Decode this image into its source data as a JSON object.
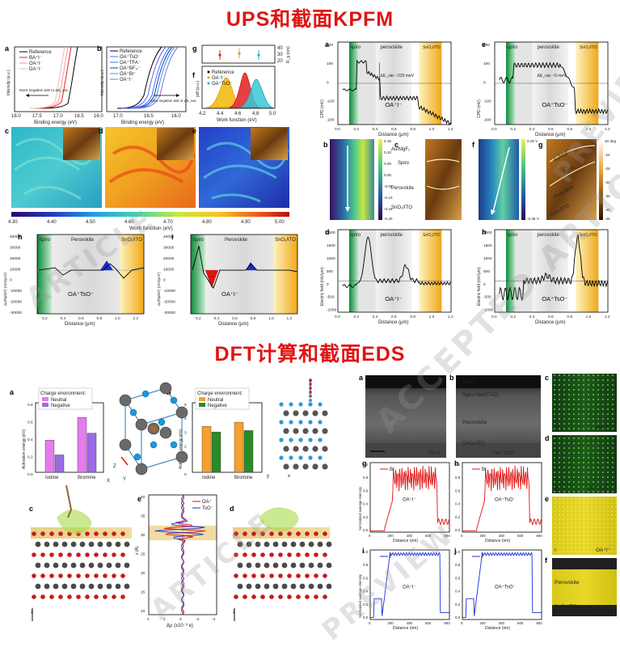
{
  "titles": {
    "top": "UPS和截面KPFM",
    "bottom": "DFT计算和截面EDS"
  },
  "watermarks": [
    "ARTICLE",
    "PREVIEW",
    "ACCEPTED ARTICLE",
    "ARTICLE",
    "PREVIEW"
  ],
  "colors": {
    "title_red": "#e01414",
    "spiro_green": "#1a9a4a",
    "sno2_orange": "#f2b01e",
    "oai": "#e01212",
    "oatso": "#1a2fd8"
  },
  "ups": {
    "panel_a": {
      "label": "a",
      "ylabel": "Intensity (a.u.)",
      "xlabel": "Binding energy (eV)",
      "xticks": [
        "18.0",
        "17.5",
        "17.0",
        "16.5",
        "16.0"
      ],
      "legend": [
        "Reference",
        "BA⁺I⁻",
        "OA⁺I⁻",
        "DA⁺I⁻"
      ],
      "note_left": "More negative ΔW or ΔE_vac"
    },
    "panel_b": {
      "label": "b",
      "ylabel": "Intensity (a.u.)",
      "xlabel": "Binding energy (eV)",
      "xticks": [
        "17.0",
        "16.5",
        "16.0"
      ],
      "legend": [
        "Reference",
        "OA⁺TsO⁻",
        "OA⁺TFA⁻",
        "OA⁺BF₄⁻",
        "OA⁺Br⁻",
        "OA⁺I⁻"
      ],
      "note_right": "Less negative ΔW or ΔE_vac"
    },
    "panel_g": {
      "label": "g",
      "ylabel": "R_q (nm)",
      "yticks": [
        "40",
        "30",
        "20"
      ]
    },
    "panel_f": {
      "label": "f",
      "ylabel": "pdf (a.u.)",
      "xlabel": "Work function (eV)",
      "xticks": [
        "4.2",
        "4.4",
        "4.6",
        "4.8",
        "5.0"
      ],
      "legend": [
        "Reference",
        "OA⁺I⁻",
        "OA⁺TsO⁻"
      ]
    },
    "maps": {
      "labels": [
        "c",
        "d",
        "e"
      ],
      "colorbar_ticks": [
        "4.30",
        "4.40",
        "4.50",
        "4.60",
        "4.70",
        "4.80",
        "4.90",
        "5.00"
      ],
      "colorbar_label": "Work function (eV)"
    },
    "panel_h": {
      "label": "h",
      "ylabel": "Δ(∂²ψ/∂x²) (mV/μm²)",
      "xlabel": "Distance (μm)",
      "yticks": [
        "40000",
        "30000",
        "20000",
        "10000",
        "0",
        "-10000",
        "-20000",
        "-30000"
      ],
      "xticks": [
        "0.2",
        "0.4",
        "0.6",
        "0.8",
        "1.0",
        "1.2"
      ],
      "regions": [
        "Spiro",
        "Perovskite",
        "SnO₂/ITO"
      ],
      "sample": "OA⁺TsO⁻"
    },
    "panel_i": {
      "label": "i",
      "ylabel": "Δ(∂²ψ/∂x²) (mV/μm²)",
      "xlabel": "Distance (μm)",
      "yticks": [
        "40000",
        "30000",
        "20000",
        "10000",
        "0",
        "-10000",
        "-20000",
        "-30000"
      ],
      "xticks": [
        "0.2",
        "0.4",
        "0.6",
        "0.8",
        "1.0",
        "1.2"
      ],
      "regions": [
        "Spiro",
        "Perovskite",
        "SnO₂/ITO"
      ],
      "sample": "OA⁺I⁻"
    }
  },
  "kpfm": {
    "panel_a": {
      "label": "a",
      "ylabel": "CPD (mV)",
      "xlabel": "Distance (μm)",
      "yticks": [
        "200",
        "100",
        "0",
        "-100",
        "-200"
      ],
      "xticks": [
        "0.0",
        "0.2",
        "0.4",
        "0.6",
        "0.8",
        "1.0",
        "1.2"
      ],
      "regions": [
        "spiro",
        "perovskite",
        "SnO₂/ITO"
      ],
      "annotation": "ΔE_vac ~229 meV",
      "sample": "OA⁺I⁻"
    },
    "panel_e": {
      "label": "e",
      "ylabel": "CPD (mV)",
      "xlabel": "Distance (μm)",
      "yticks": [
        "200",
        "100",
        "0",
        "-100",
        "-200"
      ],
      "xticks": [
        "0.0",
        "0.2",
        "0.4",
        "0.6",
        "0.8",
        "1.0",
        "1.2"
      ],
      "regions": [
        "spiro",
        "perovskite",
        "SnO₂/ITO"
      ],
      "annotation": "ΔE_vac ~0 meV",
      "sample": "OA⁺TsO⁻"
    },
    "panel_b": {
      "label": "b",
      "cbar": [
        "0.15",
        "0.10",
        "0.05",
        "0.00",
        "-0.05",
        "-0.10",
        "-0.15",
        "-0.20"
      ]
    },
    "panel_c": {
      "label": "c",
      "layers": [
        "Au/MgF₂",
        "Spiro",
        "Perovskite",
        "SnO₂/ITO"
      ]
    },
    "panel_f": {
      "label": "f",
      "cbar": [
        "0.28 V",
        "",
        "",
        "",
        "",
        "",
        "",
        "-0.28 V"
      ]
    },
    "panel_g": {
      "label": "g",
      "layers": [
        "Au/MgF₂",
        "Spiro",
        "Perovskite",
        "SnO₂/ITO"
      ],
      "cbar": [
        "20 deg",
        "-24",
        "-28",
        "-32",
        "-36",
        "-40",
        "-45"
      ]
    },
    "panel_d": {
      "label": "d",
      "ylabel": "Electric field (mV/μm)",
      "xlabel": "Distance (μm)",
      "yticks": [
        "2000",
        "1500",
        "1000",
        "500",
        "0",
        "-500",
        "-1000"
      ],
      "xticks": [
        "0.0",
        "0.2",
        "0.4",
        "0.6",
        "0.8",
        "1.0",
        "1.2"
      ],
      "regions": [
        "spiro",
        "perovskite",
        "SnO₂/ITO"
      ],
      "sample": "OA⁺I⁻"
    },
    "panel_h": {
      "label": "h",
      "ylabel": "Electric field (mV/μm)",
      "xlabel": "Distance (μm)",
      "yticks": [
        "2000",
        "1500",
        "1000",
        "500",
        "0",
        "-500",
        "-1000"
      ],
      "xticks": [
        "0.0",
        "0.2",
        "0.4",
        "0.6",
        "0.8",
        "1.0",
        "1.2"
      ],
      "regions": [
        "spiro",
        "perovskite",
        "SnO₂/ITO"
      ],
      "sample": "OA⁺TsO⁻"
    }
  },
  "dft": {
    "panel_a": {
      "label": "a",
      "legend_title": "Charge environment:",
      "legend": [
        "Neutral",
        "Negative"
      ],
      "ylabel": "Activation energy (eV)",
      "yticks": [
        "0.8",
        "0.6",
        "0.4",
        "0.2",
        "0.0"
      ],
      "categories": [
        "Iodine",
        "Bromine"
      ]
    },
    "panel_b": {
      "label": "b",
      "legend_title": "Charge environment:",
      "legend": [
        "Neutral",
        "Negative"
      ],
      "ylabel": "Activation energy (eV)",
      "yticks": [
        "5",
        "4",
        "3",
        "2",
        "1",
        "0"
      ],
      "categories": [
        "Iodine",
        "Bromine"
      ]
    },
    "panel_c": {
      "label": "c"
    },
    "panel_d": {
      "label": "d"
    },
    "panel_e": {
      "label": "e",
      "ylabel": "z (Å)",
      "xlabel": "Δρ (x10⁻³ e)",
      "yticks": [
        "40",
        "35",
        "30",
        "25",
        "20",
        "15",
        "10"
      ],
      "xticks": [
        "4",
        "2",
        "0",
        "-2",
        "-4"
      ],
      "legend": [
        "OA⁺",
        "TsO⁻"
      ]
    },
    "axes_small": [
      "Z",
      "Y",
      "X",
      "y",
      "x",
      "z"
    ]
  },
  "eds": {
    "panel_a": {
      "label": "a",
      "sample": "OA⁺I⁻"
    },
    "panel_b": {
      "label": "b",
      "sample": "OA⁺TsO⁻",
      "layers": [
        "Au/Pt",
        "Spiro-MeOTAD",
        "Perovskite",
        "SnO₂/ITO"
      ]
    },
    "panel_g": {
      "label": "g",
      "legend": "Br",
      "ylabel": "Normalized average intensity",
      "xlabel": "Distance (nm)",
      "yticks": [
        "1.0",
        "0.8",
        "0.6",
        "0.4",
        "0.2",
        "0.0"
      ],
      "xticks": [
        "0",
        "200",
        "400",
        "600",
        "800"
      ],
      "sample": "OA⁺I⁻"
    },
    "panel_h": {
      "label": "h",
      "legend": "Br",
      "ylabel": "",
      "xlabel": "Distance (nm)",
      "yticks": [
        "1.0",
        "0.8",
        "0.6",
        "0.4",
        "0.2",
        "0.0"
      ],
      "xticks": [
        "0",
        "200",
        "400",
        "600",
        "800"
      ],
      "sample": "OA⁺TsO⁻"
    },
    "panel_i": {
      "label": "i",
      "legend": "I",
      "ylabel": "Normalized average intensity",
      "xlabel": "Distance (nm)",
      "yticks": [
        "1.0",
        "0.8",
        "0.6",
        "0.4",
        "0.2",
        "0.0"
      ],
      "xticks": [
        "0",
        "200",
        "400",
        "600",
        "800"
      ],
      "sample": "OA⁺I⁻"
    },
    "panel_j": {
      "label": "j",
      "legend": "I",
      "ylabel": "",
      "xlabel": "Distance (nm)",
      "yticks": [
        "1.0",
        "0.8",
        "0.6",
        "0.4",
        "0.2",
        "0.0"
      ],
      "xticks": [
        "0",
        "200",
        "400",
        "600",
        "800"
      ],
      "sample": "OA⁺TsO⁻"
    },
    "maps": [
      {
        "label": "c",
        "element": "Br",
        "sample": "OA⁺I⁻"
      },
      {
        "label": "d",
        "element": "Br",
        "sample": "OA⁺TsO⁻"
      },
      {
        "label": "e",
        "element": "I",
        "sample": "OA⁺I⁻"
      },
      {
        "label": "f",
        "element": "I",
        "sample": "OA⁺TsO⁻",
        "layers": [
          "spiro-MeOTAD",
          "Perovskite",
          "SnO₂/ITO"
        ]
      }
    ]
  }
}
